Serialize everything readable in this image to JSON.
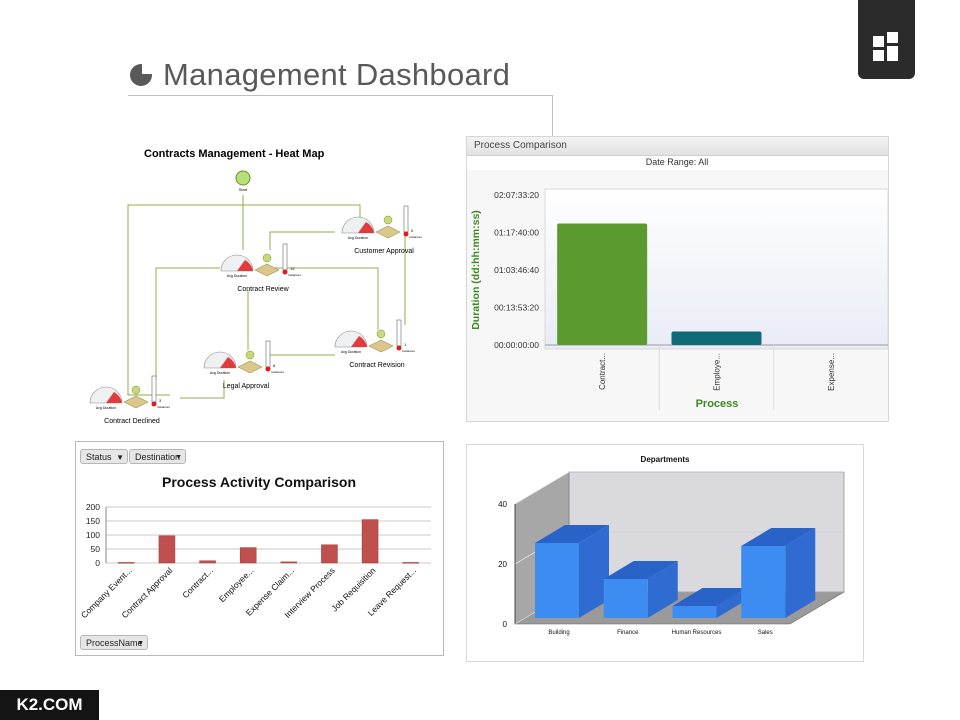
{
  "slide": {
    "title": "Management Dashboard",
    "brand": "K2.COM",
    "icons": [
      "pie-chart-icon",
      "grid-logo-icon"
    ]
  },
  "heatmap": {
    "title": "Contracts Management - Heat Map",
    "start_label": "Start",
    "nodes": [
      {
        "label": "Customer Approval",
        "metric": "0",
        "metric_label": "Instances",
        "gauge_label": "Avg Duration"
      },
      {
        "label": "Contract Review",
        "metric": "13",
        "metric_label": "Instances",
        "gauge_label": "Avg Duration"
      },
      {
        "label": "Contract Revision",
        "metric": "1",
        "metric_label": "Instances",
        "gauge_label": "Avg Duration"
      },
      {
        "label": "Legal Approval",
        "metric": "8",
        "metric_label": "Instances",
        "gauge_label": "Avg Duration"
      },
      {
        "label": "Contract Declined",
        "metric": "3",
        "metric_label": "Instances",
        "gauge_label": "Avg Duration"
      }
    ]
  },
  "process_comparison": {
    "header": "Process Comparison",
    "date_range": "Date Range: All"
  },
  "process_activity": {
    "filters": {
      "status": "Status",
      "destination": "Destination",
      "process_name": "ProcessName"
    }
  },
  "chart_data": [
    {
      "type": "bar",
      "title": "Date Range: All",
      "xlabel": "Process",
      "ylabel": "Duration (dd:hh:mm:ss)",
      "categories": [
        "Contract...",
        "Employe...",
        "Expense..."
      ],
      "ytick_labels": [
        "00:00:00:00",
        "00:13:53:20",
        "01:03:46:40",
        "01:17:40:00",
        "02:07:33:20"
      ],
      "values_seconds": [
        162000,
        18000,
        0
      ],
      "ylim_seconds": [
        0,
        200000
      ],
      "colors": [
        "#5a9a2e",
        "#0f6a78",
        "#0f6a78"
      ]
    },
    {
      "type": "bar",
      "title": "Process Activity Comparison",
      "categories": [
        "Company Event...",
        "Contract Approval",
        "Contract...",
        "Employee...",
        "Expense Claim...",
        "Interview Process",
        "Job Requisition",
        "Leave Request..."
      ],
      "values": [
        2,
        97,
        8,
        55,
        4,
        65,
        155,
        2
      ],
      "ylim": [
        0,
        200
      ],
      "yticks": [
        0,
        50,
        100,
        150,
        200
      ],
      "color": "#c0504d",
      "grid": true
    },
    {
      "type": "bar",
      "title": "Departments",
      "categories": [
        "Building",
        "Finance",
        "Human Resources",
        "Sales"
      ],
      "values": [
        25,
        13,
        4,
        24
      ],
      "ylim": [
        0,
        40
      ],
      "yticks": [
        0,
        20,
        40
      ],
      "color": "#3d8cf2"
    }
  ]
}
